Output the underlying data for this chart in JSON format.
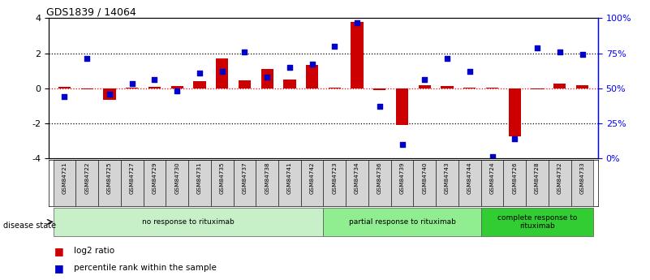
{
  "title": "GDS1839 / 14064",
  "samples": [
    "GSM84721",
    "GSM84722",
    "GSM84725",
    "GSM84727",
    "GSM84729",
    "GSM84730",
    "GSM84731",
    "GSM84735",
    "GSM84737",
    "GSM84738",
    "GSM84741",
    "GSM84742",
    "GSM84723",
    "GSM84734",
    "GSM84736",
    "GSM84739",
    "GSM84740",
    "GSM84743",
    "GSM84744",
    "GSM84724",
    "GSM84726",
    "GSM84728",
    "GSM84732",
    "GSM84733"
  ],
  "log2_ratio": [
    0.1,
    -0.08,
    -0.65,
    0.05,
    0.08,
    0.12,
    0.38,
    1.7,
    0.45,
    1.1,
    0.48,
    1.35,
    0.05,
    3.8,
    -0.12,
    -2.1,
    0.18,
    0.12,
    0.05,
    0.05,
    -2.75,
    -0.08,
    0.28,
    0.18
  ],
  "percentile": [
    44,
    71,
    46,
    53,
    56,
    48,
    61,
    62,
    76,
    58,
    65,
    67,
    80,
    97,
    37,
    10,
    56,
    71,
    62,
    1,
    14,
    79,
    76,
    74
  ],
  "groups": [
    {
      "label": "no response to rituximab",
      "start": 0,
      "end": 12,
      "color": "#c8f0c8"
    },
    {
      "label": "partial response to rituximab",
      "start": 12,
      "end": 19,
      "color": "#90ee90"
    },
    {
      "label": "complete response to\nrituximab",
      "start": 19,
      "end": 24,
      "color": "#32cd32"
    }
  ],
  "bar_color": "#cc0000",
  "dot_color": "#0000cc",
  "ylim": [
    -4,
    4
  ],
  "yticks": [
    -4,
    -2,
    0,
    2,
    4
  ],
  "y2ticks": [
    0,
    25,
    50,
    75,
    100
  ],
  "y2ticklabels": [
    "0%",
    "25%",
    "50%",
    "75%",
    "100%"
  ]
}
